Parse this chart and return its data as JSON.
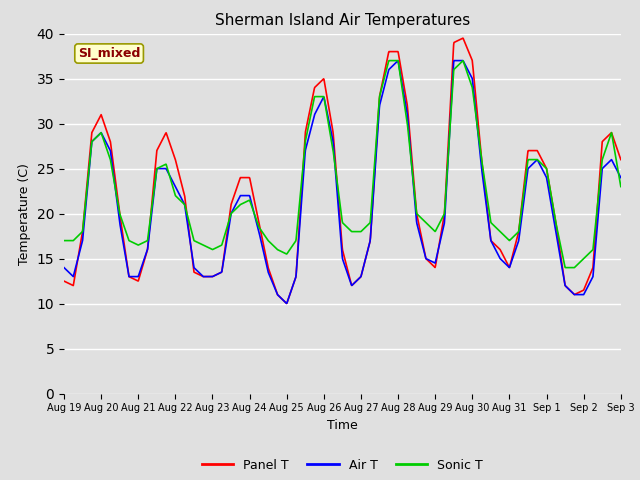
{
  "title": "Sherman Island Air Temperatures",
  "xlabel": "Time",
  "ylabel": "Temperature (C)",
  "ylim": [
    0,
    40
  ],
  "yticks": [
    0,
    5,
    10,
    15,
    20,
    25,
    30,
    35,
    40
  ],
  "xtick_labels": [
    "Aug 19",
    "Aug 20",
    "Aug 21",
    "Aug 22",
    "Aug 23",
    "Aug 24",
    "Aug 25",
    "Aug 26",
    "Aug 27",
    "Aug 28",
    "Aug 29",
    "Aug 30",
    "Aug 31",
    "Sep 1",
    "Sep 2",
    "Sep 3"
  ],
  "xtick_positions": [
    0,
    1,
    2,
    3,
    4,
    5,
    6,
    7,
    8,
    9,
    10,
    11,
    12,
    13,
    14,
    15
  ],
  "annotation_text": "SI_mixed",
  "annotation_color": "#8B0000",
  "annotation_bg": "#FFFFCC",
  "bg_color": "#E0E0E0",
  "fig_bg_color": "#E0E0E0",
  "panel_color": "#FF0000",
  "air_color": "#0000FF",
  "sonic_color": "#00CC00",
  "line_width": 1.2,
  "title_fontsize": 11,
  "axis_fontsize": 9,
  "tick_fontsize": 7,
  "legend_labels": [
    "Panel T",
    "Air T",
    "Sonic T"
  ],
  "panel_knots_x": [
    0,
    0.25,
    0.5,
    0.75,
    1.0,
    1.25,
    1.5,
    1.75,
    2.0,
    2.25,
    2.5,
    2.75,
    3.0,
    3.25,
    3.5,
    3.75,
    4.0,
    4.25,
    4.5,
    4.75,
    5.0,
    5.25,
    5.5,
    5.75,
    6.0,
    6.25,
    6.5,
    6.75,
    7.0,
    7.25,
    7.5,
    7.75,
    8.0,
    8.25,
    8.5,
    8.75,
    9.0,
    9.25,
    9.5,
    9.75,
    10.0,
    10.25,
    10.5,
    10.75,
    11.0,
    11.25,
    11.5,
    11.75,
    12.0,
    12.25,
    12.5,
    12.75,
    13.0,
    13.25,
    13.5,
    13.75,
    14.0,
    14.25,
    14.5,
    14.75,
    15.0
  ],
  "panel_knots_y": [
    12.5,
    12.0,
    18,
    29,
    31,
    28,
    20,
    13,
    12.5,
    16,
    27,
    29,
    26,
    22,
    13.5,
    13,
    13,
    13.5,
    21,
    24,
    24,
    19,
    14,
    11,
    10,
    13,
    29,
    34,
    35,
    29,
    16,
    12,
    13,
    17,
    33,
    38,
    38,
    32,
    20,
    15,
    14,
    20,
    39,
    39.5,
    37,
    26,
    17,
    16,
    14,
    18,
    27,
    27,
    25,
    19,
    12,
    11,
    11.5,
    14,
    28,
    29,
    26
  ],
  "air_knots_y": [
    14,
    13,
    17,
    28,
    29,
    27,
    19,
    13,
    13,
    16,
    25,
    25,
    23,
    21,
    14,
    13,
    13,
    13.5,
    20,
    22,
    22,
    18,
    13.5,
    11,
    10,
    13,
    27,
    31,
    33,
    28,
    15,
    12,
    13,
    17,
    32,
    36,
    37,
    31,
    19,
    15,
    14.5,
    19,
    37,
    37,
    35,
    25,
    17,
    15,
    14,
    17,
    25,
    26,
    24,
    18,
    12,
    11,
    11,
    13,
    25,
    26,
    24
  ],
  "sonic_knots_y": [
    17,
    17,
    18,
    28,
    29,
    26,
    20,
    17,
    16.5,
    17,
    25,
    25.5,
    22,
    21,
    17,
    16.5,
    16,
    16.5,
    20,
    21,
    21.5,
    18.5,
    17,
    16,
    15.5,
    17,
    28,
    33,
    33,
    27,
    19,
    18,
    18,
    19,
    33,
    37,
    37,
    30,
    20,
    19,
    18,
    20,
    36,
    37,
    34,
    26,
    19,
    18,
    17,
    18,
    26,
    26,
    25,
    19,
    14,
    14,
    15,
    16,
    26,
    29,
    23
  ]
}
